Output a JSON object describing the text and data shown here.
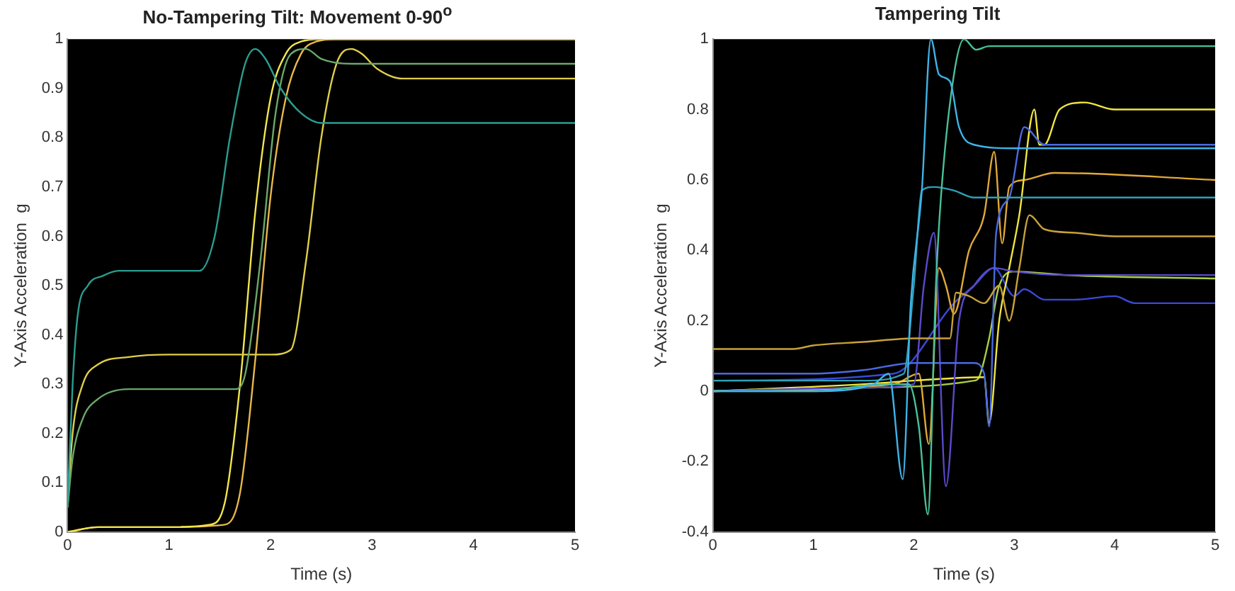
{
  "chart_data": [
    {
      "type": "line",
      "title": "No-Tampering Tilt: Movement 0-90$^{o}$",
      "xlabel": "Time (s)",
      "ylabel": "Y-Axis Acceleration  g",
      "xlim": [
        0,
        5
      ],
      "xticks": [
        0,
        1,
        2,
        3,
        4,
        5
      ],
      "ylim": [
        0,
        1
      ],
      "yticks": [
        0,
        0.1,
        0.2,
        0.3,
        0.4,
        0.5,
        0.6,
        0.7,
        0.8,
        0.9,
        1
      ],
      "grid": false,
      "legend": false,
      "marker": "none",
      "line_style": "solid",
      "series": [
        {
          "color": "#2a9d8f",
          "x": [
            0,
            0.05,
            0.1,
            0.2,
            0.35,
            0.5,
            1.0,
            1.3,
            1.45,
            1.6,
            1.75,
            1.85,
            1.95,
            2.1,
            2.3,
            2.5,
            3.0,
            5.0
          ],
          "values": [
            0.05,
            0.3,
            0.44,
            0.5,
            0.52,
            0.53,
            0.53,
            0.53,
            0.6,
            0.8,
            0.95,
            0.98,
            0.96,
            0.9,
            0.85,
            0.83,
            0.83,
            0.83
          ]
        },
        {
          "color": "#6aa86a",
          "x": [
            0,
            0.05,
            0.15,
            0.3,
            0.6,
            1.0,
            1.65,
            1.75,
            1.9,
            2.05,
            2.2,
            2.35,
            2.5,
            2.8,
            5.0
          ],
          "values": [
            0.05,
            0.15,
            0.23,
            0.27,
            0.29,
            0.29,
            0.29,
            0.32,
            0.55,
            0.85,
            0.97,
            0.98,
            0.96,
            0.95,
            0.95
          ]
        },
        {
          "color": "#e0cf4a",
          "x": [
            0,
            0.05,
            0.15,
            0.3,
            0.6,
            1.0,
            2.0,
            2.2,
            2.35,
            2.5,
            2.65,
            2.8,
            2.9,
            3.05,
            3.3,
            5.0
          ],
          "values": [
            0.05,
            0.2,
            0.3,
            0.34,
            0.355,
            0.36,
            0.36,
            0.37,
            0.55,
            0.8,
            0.95,
            0.98,
            0.97,
            0.94,
            0.92,
            0.92
          ]
        },
        {
          "color": "#f2e64e",
          "x": [
            0,
            0.3,
            1.0,
            1.4,
            1.55,
            1.7,
            1.85,
            2.0,
            2.15,
            2.3,
            2.5,
            5.0
          ],
          "values": [
            0.0,
            0.01,
            0.01,
            0.015,
            0.06,
            0.3,
            0.65,
            0.88,
            0.97,
            0.995,
            1.0,
            1.0
          ]
        },
        {
          "color": "#e8b84a",
          "x": [
            0,
            0.3,
            1.0,
            1.55,
            1.7,
            1.85,
            2.0,
            2.15,
            2.3,
            2.45,
            2.65,
            5.0
          ],
          "values": [
            0.0,
            0.01,
            0.01,
            0.015,
            0.08,
            0.35,
            0.68,
            0.88,
            0.97,
            0.995,
            1.0,
            1.0
          ]
        }
      ]
    },
    {
      "type": "line",
      "title": "Tampering Tilt",
      "xlabel": "Time (s)",
      "ylabel": "Y-Axis Acceleration  g",
      "xlim": [
        0,
        5
      ],
      "xticks": [
        0,
        1,
        2,
        3,
        4,
        5
      ],
      "ylim": [
        -0.4,
        1
      ],
      "yticks": [
        -0.4,
        -0.2,
        0,
        0.2,
        0.4,
        0.6,
        0.8,
        1
      ],
      "grid": false,
      "legend": false,
      "marker": "none",
      "line_style": "solid",
      "series": [
        {
          "color": "#3fb4e8",
          "x": [
            0,
            1.0,
            1.6,
            1.75,
            1.89,
            1.97,
            2.08,
            2.17,
            2.25,
            2.36,
            2.45,
            2.6,
            3.0,
            5.0
          ],
          "values": [
            0.0,
            0.0,
            0.02,
            0.05,
            -0.25,
            0.25,
            0.57,
            1.0,
            0.9,
            0.88,
            0.75,
            0.7,
            0.69,
            0.69
          ]
        },
        {
          "color": "#48c29a",
          "x": [
            0,
            1.0,
            1.7,
            1.95,
            2.05,
            2.14,
            2.22,
            2.27,
            2.4,
            2.5,
            2.62,
            2.75,
            5.0
          ],
          "values": [
            0.0,
            0.0,
            0.02,
            0.02,
            -0.1,
            -0.35,
            0.3,
            0.55,
            0.9,
            1.0,
            0.97,
            0.98,
            0.98
          ]
        },
        {
          "color": "#2fa0b8",
          "x": [
            0,
            1.5,
            1.9,
            2.0,
            2.08,
            2.2,
            2.4,
            2.6,
            3.0,
            5.0
          ],
          "values": [
            0.03,
            0.03,
            0.05,
            0.3,
            0.57,
            0.58,
            0.57,
            0.55,
            0.55,
            0.55
          ]
        },
        {
          "color": "#c9a13a",
          "x": [
            0,
            0.8,
            1.0,
            1.5,
            2.0,
            2.36,
            2.42,
            2.55,
            2.7,
            2.85,
            2.95,
            3.05,
            3.15,
            3.3,
            3.6,
            4.0,
            5.0
          ],
          "values": [
            0.12,
            0.12,
            0.13,
            0.14,
            0.15,
            0.15,
            0.28,
            0.27,
            0.25,
            0.3,
            0.2,
            0.35,
            0.5,
            0.46,
            0.45,
            0.44,
            0.44
          ]
        },
        {
          "color": "#4a6ae0",
          "x": [
            0,
            1.0,
            1.5,
            2.0,
            2.6,
            2.7,
            2.75,
            2.82,
            2.95,
            3.1,
            3.3,
            3.6,
            5.0
          ],
          "values": [
            0.05,
            0.05,
            0.06,
            0.08,
            0.08,
            0.05,
            -0.1,
            0.45,
            0.55,
            0.75,
            0.7,
            0.7,
            0.7
          ]
        },
        {
          "color": "#5a4ac8",
          "x": [
            0,
            1.5,
            2.0,
            2.1,
            2.2,
            2.32,
            2.45,
            2.6,
            2.8,
            3.0,
            3.5,
            5.0
          ],
          "values": [
            0.0,
            0.01,
            0.02,
            0.3,
            0.45,
            -0.27,
            0.2,
            0.3,
            0.35,
            0.34,
            0.33,
            0.33
          ]
        },
        {
          "color": "#f0e640",
          "x": [
            0,
            1.5,
            2.0,
            2.7,
            2.75,
            2.85,
            2.95,
            3.05,
            3.2,
            3.25,
            3.3,
            3.45,
            3.7,
            4.0,
            5.0
          ],
          "values": [
            0.0,
            0.02,
            0.03,
            0.04,
            -0.09,
            0.2,
            0.35,
            0.5,
            0.8,
            0.7,
            0.7,
            0.8,
            0.82,
            0.8,
            0.8
          ]
        },
        {
          "color": "#e0a838",
          "x": [
            0,
            1.8,
            2.05,
            2.15,
            2.25,
            2.32,
            2.4,
            2.55,
            2.7,
            2.8,
            2.88,
            2.95,
            3.1,
            3.4,
            5.0
          ],
          "values": [
            0.0,
            0.02,
            0.05,
            -0.15,
            0.35,
            0.3,
            0.22,
            0.4,
            0.5,
            0.68,
            0.42,
            0.58,
            0.6,
            0.62,
            0.6
          ]
        },
        {
          "color": "#3a4ad8",
          "x": [
            0,
            1.8,
            2.4,
            2.6,
            2.8,
            3.0,
            3.1,
            3.3,
            3.6,
            4.0,
            4.2,
            5.0
          ],
          "values": [
            0.03,
            0.05,
            0.25,
            0.3,
            0.35,
            0.27,
            0.29,
            0.26,
            0.26,
            0.27,
            0.25,
            0.25
          ]
        },
        {
          "color": "#a8d048",
          "x": [
            0,
            1.5,
            2.6,
            2.65,
            2.75,
            2.85,
            3.0,
            3.5,
            5.0
          ],
          "values": [
            0.0,
            0.01,
            0.03,
            0.04,
            0.15,
            0.3,
            0.34,
            0.33,
            0.32
          ]
        }
      ]
    }
  ]
}
